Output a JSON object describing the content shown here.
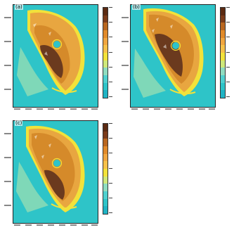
{
  "figure": {
    "panels": [
      {
        "id": "a",
        "label": "(a)"
      },
      {
        "id": "b",
        "label": "(b)"
      },
      {
        "id": "c",
        "label": "(c)"
      }
    ]
  },
  "colors": {
    "ocean": "#2ec4c8",
    "shelf": "#7fd8b8",
    "coast": "#f2e23a",
    "land_low": "#e8a640",
    "land_mid": "#d58a2a",
    "land_high": "#6b3a1e",
    "colorbar": [
      "#5b2a12",
      "#7a3b1a",
      "#b8661f",
      "#e08a2a",
      "#f0a640",
      "#f6c14a",
      "#f2e23a",
      "#cfe87a",
      "#8fdcc0",
      "#4fd0cf",
      "#2ec4c8",
      "#1fb3c4"
    ]
  }
}
